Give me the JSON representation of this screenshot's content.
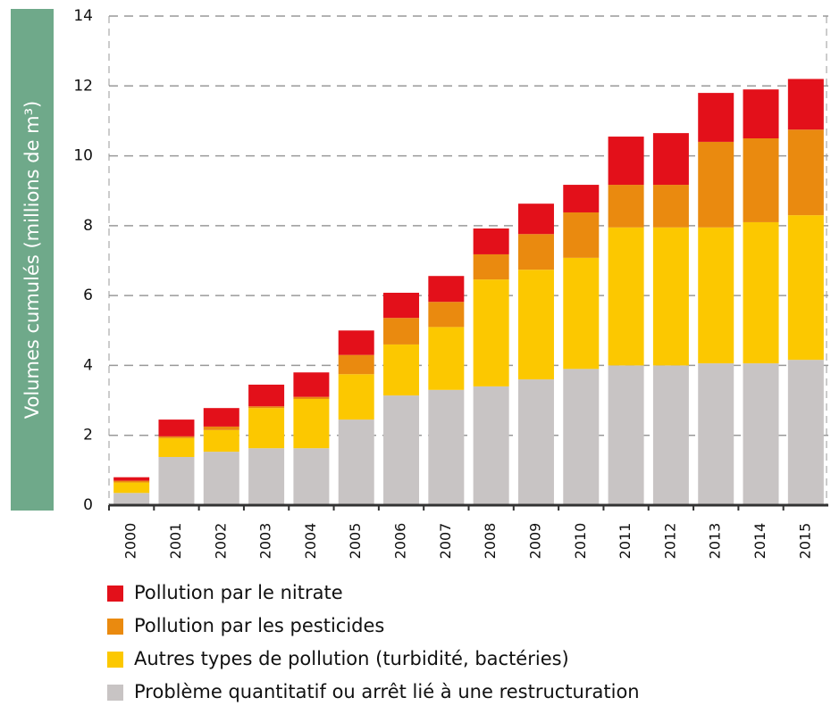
{
  "chart_data": {
    "type": "stacked_bar",
    "y_label": "Volumes cumulés (millions de m³)",
    "categories": [
      "2000",
      "2001",
      "2002",
      "2003",
      "2004",
      "2005",
      "2006",
      "2007",
      "2008",
      "2009",
      "2010",
      "2011",
      "2012",
      "2013",
      "2014",
      "2015"
    ],
    "series": [
      {
        "name": "Pollution par le nitrate",
        "color": "#e3101a",
        "values": [
          0.1,
          0.48,
          0.53,
          0.62,
          0.7,
          0.7,
          0.72,
          0.74,
          0.74,
          0.87,
          0.79,
          1.38,
          1.48,
          1.4,
          1.4,
          1.45
        ]
      },
      {
        "name": "Pollution par les pesticides",
        "color": "#ea8a0f",
        "values": [
          0.05,
          0.05,
          0.1,
          0.05,
          0.06,
          0.55,
          0.76,
          0.72,
          0.72,
          1.02,
          1.3,
          1.22,
          1.22,
          2.45,
          2.4,
          2.45
        ]
      },
      {
        "name": "Autres types de pollution (turbidité, bactéries)",
        "color": "#fcc800",
        "values": [
          0.3,
          0.54,
          0.62,
          1.15,
          1.41,
          1.3,
          1.46,
          1.8,
          3.06,
          3.14,
          3.18,
          3.95,
          3.95,
          3.89,
          4.04,
          4.14
        ]
      },
      {
        "name": "Problème quantitatif ou arrêt lié à une restructuration",
        "color": "#c8c4c4",
        "values": [
          0.35,
          1.38,
          1.53,
          1.63,
          1.63,
          2.45,
          3.14,
          3.3,
          3.4,
          3.6,
          3.9,
          4.0,
          4.0,
          4.06,
          4.06,
          4.16
        ]
      }
    ],
    "ylim": [
      0,
      14
    ],
    "yticks": [
      0,
      2,
      4,
      6,
      8,
      10,
      12,
      14
    ],
    "grid": true
  }
}
